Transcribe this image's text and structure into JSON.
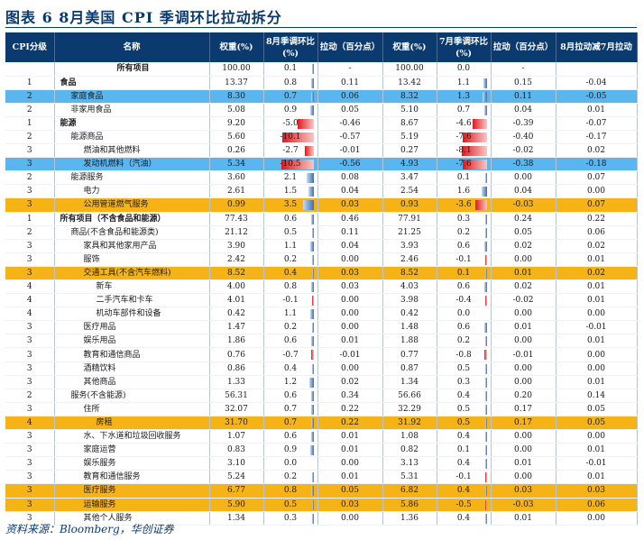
{
  "title": "图表 6   8月美国 CPI 季调环比拉动拆分",
  "source": "资料来源：Bloomberg，华创证券",
  "colors": {
    "header_bg": "#0a3a6e",
    "highlight_blue": "#59b6ef",
    "highlight_orange": "#f5b316",
    "bar_positive": "#3b6fb6",
    "bar_negative": "#e0191e"
  },
  "columns": [
    "CPI分级",
    "名称",
    "权重(%)",
    "8月季调环比(%)",
    "拉动（百分点）",
    "权重(%)",
    "7月季调环比(%)",
    "拉动（百分点）",
    "8月拉动减7月拉动"
  ],
  "rows": [
    {
      "level": "",
      "name": "所有项目",
      "indent": 0,
      "bold": true,
      "hl": "",
      "w8": "100.00",
      "m8": "0.1",
      "p8": "-",
      "w7": "100.00",
      "m7": "0.0",
      "p7": "-",
      "d": ""
    },
    {
      "level": "1",
      "name": "食品",
      "indent": 0,
      "bold": true,
      "hl": "",
      "w8": "13.37",
      "m8": "0.8",
      "p8": "0.11",
      "w7": "13.42",
      "m7": "1.1",
      "p7": "0.15",
      "d": "-0.04"
    },
    {
      "level": "2",
      "name": "家庭食品",
      "indent": 1,
      "bold": false,
      "hl": "blue",
      "w8": "8.30",
      "m8": "0.7",
      "p8": "0.06",
      "w7": "8.32",
      "m7": "1.3",
      "p7": "0.11",
      "d": "-0.05"
    },
    {
      "level": "2",
      "name": "非家用食品",
      "indent": 1,
      "bold": false,
      "hl": "",
      "w8": "5.08",
      "m8": "0.9",
      "p8": "0.05",
      "w7": "5.10",
      "m7": "0.7",
      "p7": "0.04",
      "d": "0.01"
    },
    {
      "level": "1",
      "name": "能源",
      "indent": 0,
      "bold": true,
      "hl": "",
      "w8": "9.20",
      "m8": "-5.0",
      "p8": "-0.46",
      "w7": "8.67",
      "m7": "-4.6",
      "p7": "-0.39",
      "d": "-0.07"
    },
    {
      "level": "2",
      "name": "能源商品",
      "indent": 1,
      "bold": false,
      "hl": "",
      "w8": "5.60",
      "m8": "-10.1",
      "p8": "-0.57",
      "w7": "5.19",
      "m7": "-7.6",
      "p7": "-0.40",
      "d": "-0.17"
    },
    {
      "level": "3",
      "name": "燃油和其他燃料",
      "indent": 2,
      "bold": false,
      "hl": "",
      "w8": "0.26",
      "m8": "-2.7",
      "p8": "-0.01",
      "w7": "0.27",
      "m7": "-8.1",
      "p7": "-0.02",
      "d": "0.02"
    },
    {
      "level": "3",
      "name": "发动机燃料（汽油）",
      "indent": 2,
      "bold": false,
      "hl": "blue",
      "w8": "5.34",
      "m8": "-10.5",
      "p8": "-0.56",
      "w7": "4.93",
      "m7": "-7.6",
      "p7": "-0.38",
      "d": "-0.18"
    },
    {
      "level": "2",
      "name": "能源服务",
      "indent": 1,
      "bold": false,
      "hl": "",
      "w8": "3.60",
      "m8": "2.1",
      "p8": "0.08",
      "w7": "3.47",
      "m7": "0.1",
      "p7": "0.00",
      "d": "0.07"
    },
    {
      "level": "3",
      "name": "电力",
      "indent": 2,
      "bold": false,
      "hl": "",
      "w8": "2.61",
      "m8": "1.5",
      "p8": "0.04",
      "w7": "2.54",
      "m7": "1.6",
      "p7": "0.04",
      "d": "0.00"
    },
    {
      "level": "3",
      "name": "公用管道燃气服务",
      "indent": 2,
      "bold": false,
      "hl": "orange",
      "w8": "0.99",
      "m8": "3.5",
      "p8": "0.03",
      "w7": "0.93",
      "m7": "-3.6",
      "p7": "-0.03",
      "d": "0.07"
    },
    {
      "level": "1",
      "name": "所有项目（不含食品和能源）",
      "indent": 0,
      "bold": true,
      "hl": "",
      "w8": "77.43",
      "m8": "0.6",
      "p8": "0.46",
      "w7": "77.91",
      "m7": "0.3",
      "p7": "0.24",
      "d": "0.22"
    },
    {
      "level": "2",
      "name": "商品(不含食品和能源类)",
      "indent": 1,
      "bold": false,
      "hl": "",
      "w8": "21.12",
      "m8": "0.5",
      "p8": "0.11",
      "w7": "21.25",
      "m7": "0.2",
      "p7": "0.05",
      "d": "0.06"
    },
    {
      "level": "3",
      "name": "家具和其他家用产品",
      "indent": 2,
      "bold": false,
      "hl": "",
      "w8": "3.90",
      "m8": "1.1",
      "p8": "0.04",
      "w7": "3.93",
      "m7": "0.6",
      "p7": "0.02",
      "d": "0.02"
    },
    {
      "level": "3",
      "name": "服饰",
      "indent": 2,
      "bold": false,
      "hl": "",
      "w8": "2.42",
      "m8": "0.2",
      "p8": "0.00",
      "w7": "2.46",
      "m7": "-0.1",
      "p7": "0.00",
      "d": "0.01"
    },
    {
      "level": "3",
      "name": "交通工具(不含汽车燃料)",
      "indent": 2,
      "bold": false,
      "hl": "orange",
      "w8": "8.52",
      "m8": "0.4",
      "p8": "0.03",
      "w7": "8.52",
      "m7": "0.1",
      "p7": "0.01",
      "d": "0.02"
    },
    {
      "level": "4",
      "name": "新车",
      "indent": 3,
      "bold": false,
      "hl": "",
      "w8": "4.00",
      "m8": "0.8",
      "p8": "0.03",
      "w7": "4.03",
      "m7": "0.6",
      "p7": "0.02",
      "d": "0.01"
    },
    {
      "level": "4",
      "name": "二手汽车和卡车",
      "indent": 3,
      "bold": false,
      "hl": "",
      "w8": "4.01",
      "m8": "-0.1",
      "p8": "0.00",
      "w7": "3.98",
      "m7": "-0.4",
      "p7": "-0.02",
      "d": "0.01"
    },
    {
      "level": "4",
      "name": "机动车部件和设备",
      "indent": 3,
      "bold": false,
      "hl": "",
      "w8": "0.42",
      "m8": "1.1",
      "p8": "0.00",
      "w7": "0.42",
      "m7": "0.0",
      "p7": "0.00",
      "d": "0.00"
    },
    {
      "level": "3",
      "name": "医疗用品",
      "indent": 2,
      "bold": false,
      "hl": "",
      "w8": "1.47",
      "m8": "0.2",
      "p8": "0.00",
      "w7": "1.48",
      "m7": "0.6",
      "p7": "0.01",
      "d": "-0.01"
    },
    {
      "level": "3",
      "name": "娱乐用品",
      "indent": 2,
      "bold": false,
      "hl": "",
      "w8": "1.86",
      "m8": "0.6",
      "p8": "0.01",
      "w7": "1.88",
      "m7": "0.2",
      "p7": "0.00",
      "d": "0.01"
    },
    {
      "level": "3",
      "name": "教育和通信商品",
      "indent": 2,
      "bold": false,
      "hl": "",
      "w8": "0.76",
      "m8": "-0.7",
      "p8": "-0.01",
      "w7": "0.77",
      "m7": "-0.8",
      "p7": "-0.01",
      "d": "0.00"
    },
    {
      "level": "3",
      "name": "酒精饮料",
      "indent": 2,
      "bold": false,
      "hl": "",
      "w8": "0.86",
      "m8": "0.4",
      "p8": "0.00",
      "w7": "0.87",
      "m7": "0.5",
      "p7": "0.00",
      "d": "0.00"
    },
    {
      "level": "3",
      "name": "其他商品",
      "indent": 2,
      "bold": false,
      "hl": "",
      "w8": "1.33",
      "m8": "1.2",
      "p8": "0.02",
      "w7": "1.34",
      "m7": "0.3",
      "p7": "0.00",
      "d": "0.01"
    },
    {
      "level": "2",
      "name": "服务(不含能源)",
      "indent": 1,
      "bold": false,
      "hl": "",
      "w8": "56.31",
      "m8": "0.6",
      "p8": "0.34",
      "w7": "56.66",
      "m7": "0.4",
      "p7": "0.20",
      "d": "0.14"
    },
    {
      "level": "3",
      "name": "住所",
      "indent": 2,
      "bold": false,
      "hl": "",
      "w8": "32.07",
      "m8": "0.7",
      "p8": "0.22",
      "w7": "32.29",
      "m7": "0.5",
      "p7": "0.17",
      "d": "0.05"
    },
    {
      "level": "4",
      "name": "房租",
      "indent": 3,
      "bold": false,
      "hl": "orange",
      "w8": "31.70",
      "m8": "0.7",
      "p8": "0.22",
      "w7": "31.92",
      "m7": "0.5",
      "p7": "0.17",
      "d": "0.05"
    },
    {
      "level": "3",
      "name": "水、下水道和垃圾回收服务",
      "indent": 2,
      "bold": false,
      "hl": "",
      "w8": "1.07",
      "m8": "0.6",
      "p8": "0.01",
      "w7": "1.08",
      "m7": "0.4",
      "p7": "0.00",
      "d": "0.00"
    },
    {
      "level": "3",
      "name": "家庭运营",
      "indent": 2,
      "bold": false,
      "hl": "",
      "w8": "0.83",
      "m8": "0.9",
      "p8": "0.01",
      "w7": "0.82",
      "m7": "0.1",
      "p7": "0.00",
      "d": "0.01"
    },
    {
      "level": "3",
      "name": "娱乐服务",
      "indent": 2,
      "bold": false,
      "hl": "",
      "w8": "3.10",
      "m8": "0.0",
      "p8": "0.00",
      "w7": "3.13",
      "m7": "0.4",
      "p7": "0.01",
      "d": "-0.01"
    },
    {
      "level": "3",
      "name": "教育和通信服务",
      "indent": 2,
      "bold": false,
      "hl": "",
      "w8": "5.24",
      "m8": "0.2",
      "p8": "0.01",
      "w7": "5.31",
      "m7": "-0.1",
      "p7": "0.00",
      "d": "0.01"
    },
    {
      "level": "3",
      "name": "医疗服务",
      "indent": 2,
      "bold": false,
      "hl": "orange",
      "w8": "6.77",
      "m8": "0.8",
      "p8": "0.05",
      "w7": "6.82",
      "m7": "0.4",
      "p7": "0.03",
      "d": "0.03"
    },
    {
      "level": "3",
      "name": "运输服务",
      "indent": 2,
      "bold": false,
      "hl": "orange",
      "w8": "5.90",
      "m8": "0.5",
      "p8": "0.03",
      "w7": "5.86",
      "m7": "-0.5",
      "p7": "-0.03",
      "d": "0.06"
    },
    {
      "level": "3",
      "name": "其他个人服务",
      "indent": 2,
      "bold": false,
      "hl": "",
      "w8": "1.34",
      "m8": "0.3",
      "p8": "0.00",
      "w7": "1.36",
      "m7": "0.4",
      "p7": "0.01",
      "d": "0.00"
    }
  ]
}
